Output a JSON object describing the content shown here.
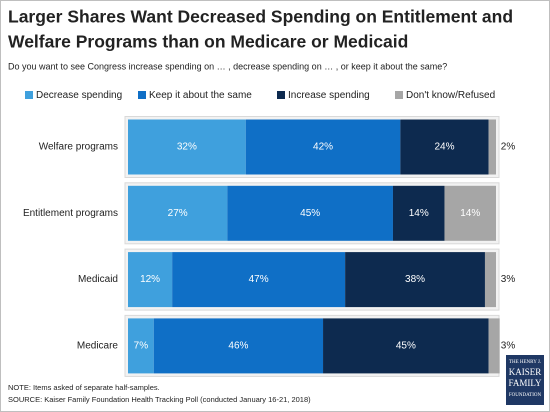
{
  "chart_data": {
    "type": "stacked-bar-horizontal",
    "title": [
      "Larger Shares Want Decreased Spending on Entitlement and",
      "Welfare Programs than on Medicare or Medicaid"
    ],
    "subtitle": "Do you want to see Congress increase spending on … , decrease spending on … , or keep it about the same?",
    "categories": [
      "Welfare programs",
      "Entitlement programs",
      "Medicaid",
      "Medicare"
    ],
    "series": [
      {
        "name": "Decrease spending",
        "color": "#3fa0dd",
        "values": [
          32,
          27,
          12,
          7
        ],
        "value_labels": [
          "32%",
          "27%",
          "12%",
          "7%"
        ]
      },
      {
        "name": "Keep it about the same",
        "color": "#0f6fc6",
        "values": [
          42,
          45,
          47,
          46
        ],
        "value_labels": [
          "42%",
          "45%",
          "47%",
          "46%"
        ]
      },
      {
        "name": "Increase spending",
        "color": "#0d2a4f",
        "values": [
          24,
          14,
          38,
          45
        ],
        "value_labels": [
          "24%",
          "14%",
          "38%",
          "45%"
        ]
      },
      {
        "name": "Don't know/Refused",
        "color": "#a6a6a6",
        "values": [
          2,
          14,
          3,
          3
        ],
        "value_labels": [
          "2%",
          "14%",
          "3%",
          "3%"
        ]
      }
    ],
    "xlim": [
      0,
      100
    ],
    "notes": [
      "NOTE: Items asked of separate half-samples.",
      "SOURCE: Kaiser Family Foundation Health Tracking Poll (conducted January 16-21, 2018)"
    ],
    "logo": [
      "THE HENRY J.",
      "KAISER",
      "FAMILY",
      "FOUNDATION"
    ]
  }
}
